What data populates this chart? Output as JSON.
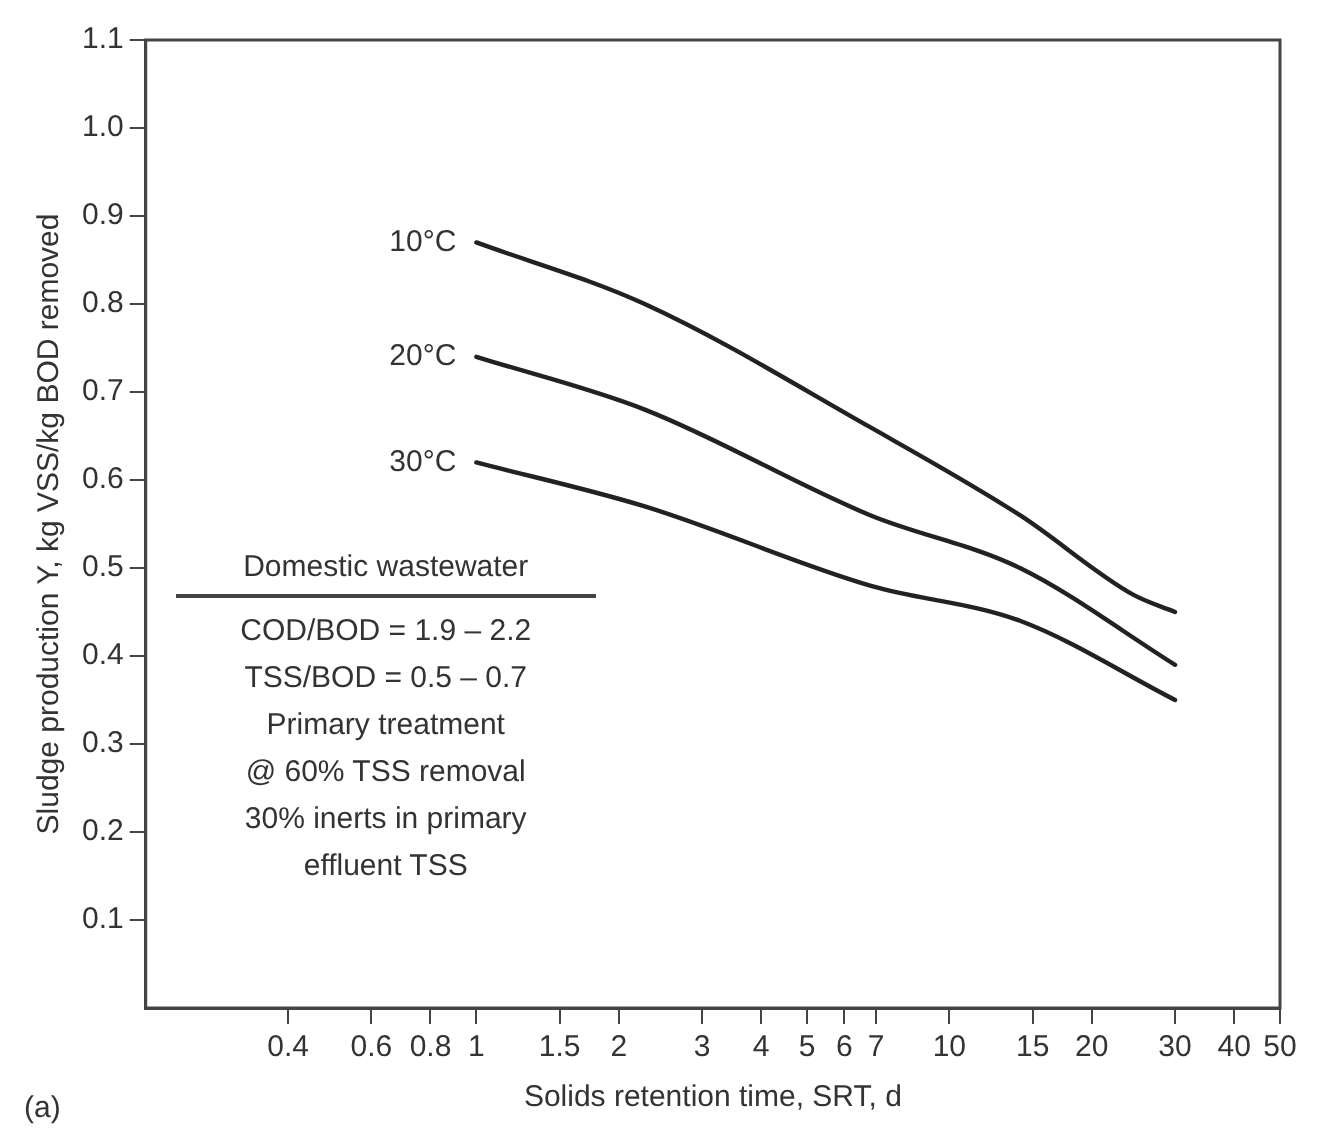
{
  "chart_data": {
    "type": "line",
    "xlabel": "Solids retention time, SRT, d",
    "ylabel": "Sludge production Y, kg VSS/kg BOD removed",
    "log": "x",
    "xlim": [
      0.2,
      50
    ],
    "xticks": [
      0.4,
      0.6,
      0.8,
      1,
      1.5,
      2,
      3,
      4,
      5,
      6,
      7,
      10,
      15,
      20,
      30,
      40,
      50
    ],
    "ylim": [
      0,
      1.1
    ],
    "yticks": [
      0.1,
      0.2,
      0.3,
      0.4,
      0.5,
      0.6,
      0.7,
      0.8,
      0.9,
      {
        "value": 1,
        "label": "1.0"
      },
      1.1
    ],
    "grid": false,
    "legend": false,
    "marker": "none",
    "line_style": "solid",
    "series": [
      {
        "name": "10°C",
        "color": "#222222",
        "x": [
          1,
          2.27,
          6.8,
          14.1,
          24.4,
          30
        ],
        "values": [
          0.87,
          0.8,
          0.66,
          0.56,
          0.47,
          0.45
        ]
      },
      {
        "name": "20°C",
        "color": "#222222",
        "x": [
          1,
          2.27,
          6.8,
          14.1,
          30
        ],
        "values": [
          0.74,
          0.68,
          0.56,
          0.5,
          0.39
        ]
      },
      {
        "name": "30°C",
        "color": "#222222",
        "x": [
          1,
          2.27,
          6.8,
          14.1,
          30
        ],
        "values": [
          0.62,
          0.57,
          0.48,
          0.44,
          0.35
        ]
      }
    ],
    "annotations": [
      "Domestic wastewater",
      "COD/BOD = 1.9 – 2.2",
      "TSS/BOD = 0.5 – 0.7",
      "Primary treatment",
      "@ 60% TSS removal",
      "30% inerts in primary",
      "effluent TSS",
      "(a)"
    ]
  }
}
